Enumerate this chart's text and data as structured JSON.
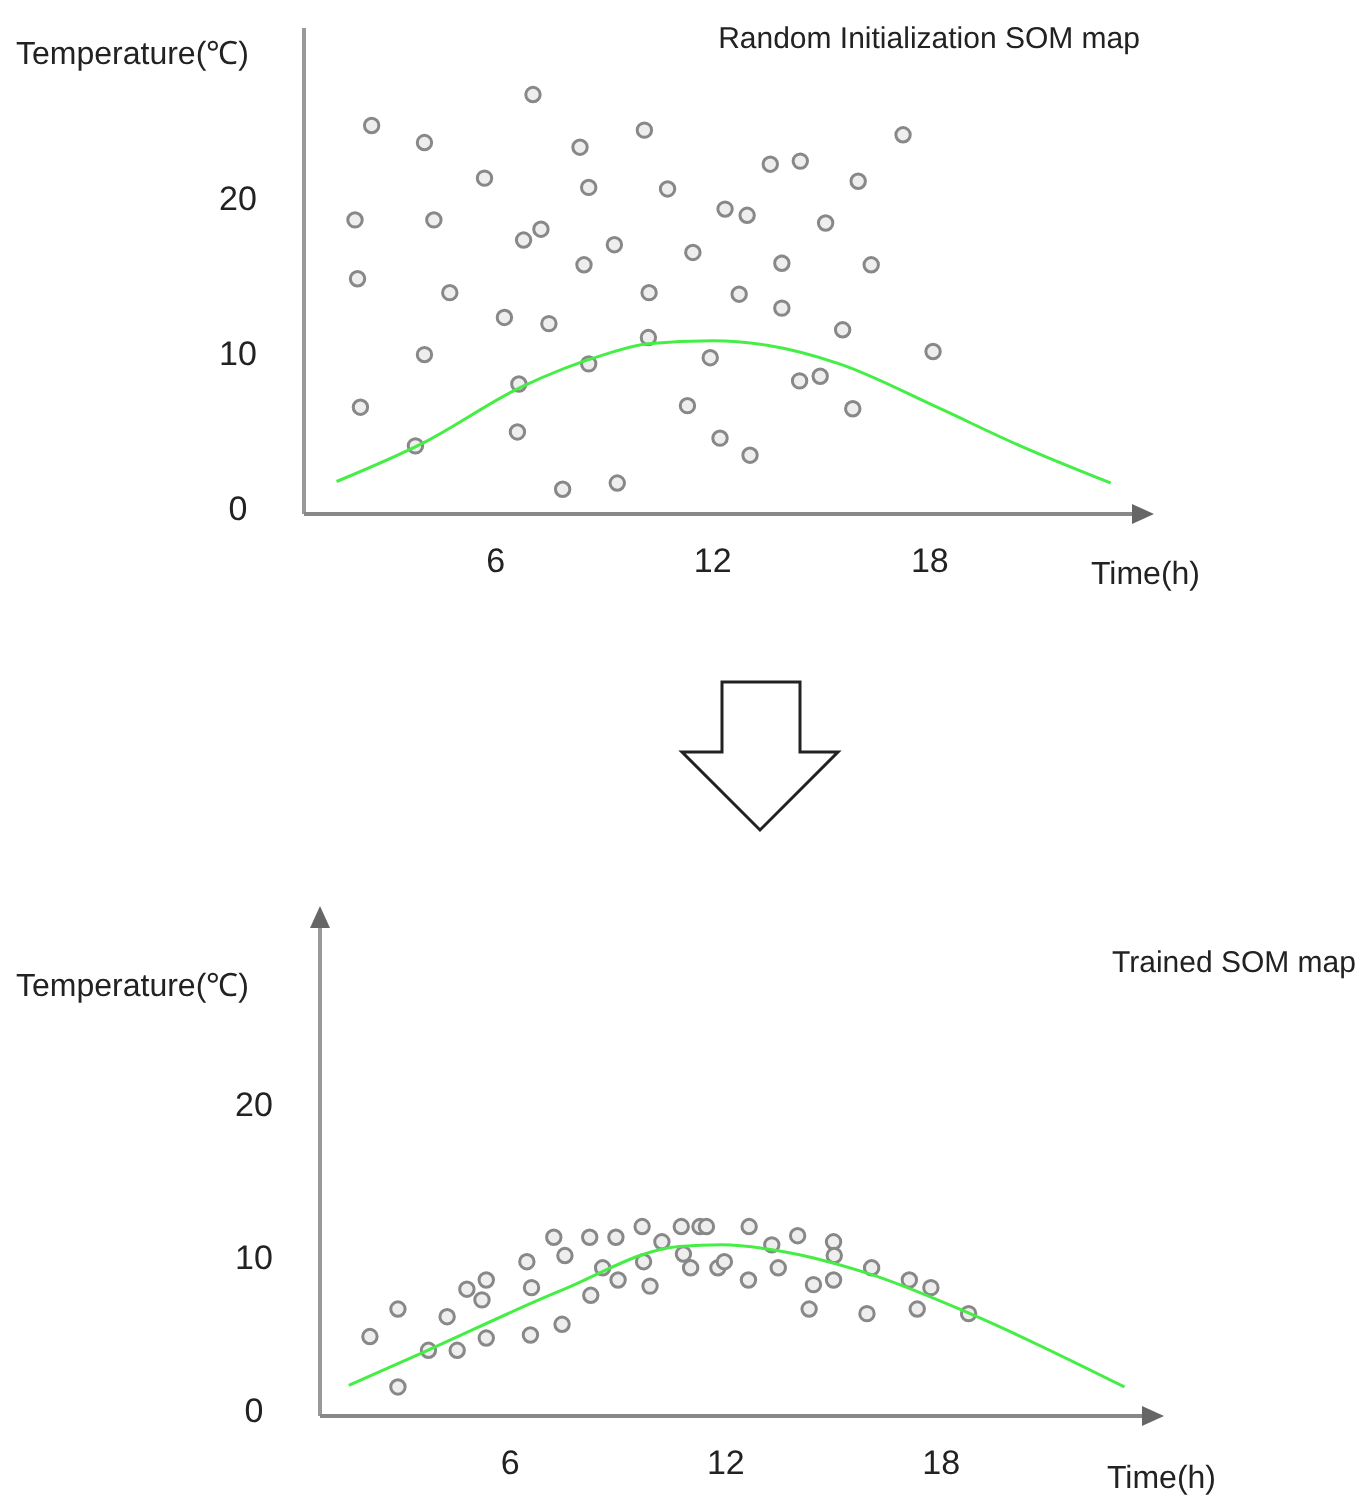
{
  "chart_data": [
    {
      "type": "scatter",
      "title": "Random Initialization SOM map",
      "xlabel": "Time(h)",
      "ylabel": "Temperature(℃)",
      "xlim": [
        0.7,
        23.7
      ],
      "ylim": [
        -0.4,
        31
      ],
      "xticks": [
        6,
        12,
        18
      ],
      "yticks": [
        0,
        10,
        20
      ],
      "series": [
        {
          "type": "scatter",
          "marker": "circle",
          "color": "#888888",
          "x": [
            2.57,
            4.03,
            7.03,
            8.33,
            10.11,
            5.69,
            8.57,
            10.75,
            2.11,
            4.29,
            6.77,
            7.25,
            9.28,
            2.18,
            8.44,
            4.73,
            10.24,
            6.24,
            7.47,
            4.03,
            10.22,
            8.57,
            6.64,
            2.26,
            6.6,
            3.78,
            7.85,
            9.36,
            17.26,
            13.59,
            14.42,
            16.02,
            12.34,
            12.95,
            15.12,
            11.45,
            13.91,
            16.38,
            12.73,
            13.91,
            15.59,
            11.93,
            18.09,
            14.4,
            14.97,
            11.3,
            15.87,
            12.2,
            13.03
          ],
          "values": [
            24.7,
            23.6,
            26.7,
            23.3,
            24.4,
            21.3,
            20.7,
            20.6,
            18.6,
            18.6,
            17.3,
            18.0,
            17.0,
            14.8,
            15.7,
            13.9,
            13.9,
            12.3,
            11.9,
            9.9,
            11.0,
            9.3,
            8.0,
            6.5,
            4.9,
            4.0,
            1.2,
            1.6,
            24.1,
            22.2,
            22.4,
            21.1,
            19.3,
            18.9,
            18.4,
            16.5,
            15.8,
            15.7,
            13.8,
            12.9,
            11.5,
            9.7,
            10.1,
            8.2,
            8.5,
            6.6,
            6.4,
            4.5,
            3.4
          ]
        },
        {
          "type": "line",
          "color": "#44ee44",
          "x": [
            1.6,
            4,
            6.7,
            9,
            10.2,
            12,
            13.5,
            15.5,
            18.2,
            20.5,
            23
          ],
          "values": [
            1.7,
            4.2,
            7.8,
            9.9,
            10.6,
            10.8,
            10.5,
            9.3,
            6.5,
            4.0,
            1.6
          ]
        }
      ]
    },
    {
      "type": "scatter",
      "title": "Trained SOM map",
      "xlabel": "Time(h)",
      "ylabel": "Temperature(℃)",
      "xlim": [
        0.7,
        23.7
      ],
      "ylim": [
        -0.4,
        31.8
      ],
      "xticks": [
        6,
        12,
        18
      ],
      "yticks": [
        0,
        10,
        20
      ],
      "series": [
        {
          "type": "scatter",
          "marker": "circle",
          "color": "#888888",
          "x": [
            2.09,
            2.87,
            2.87,
            3.72,
            4.24,
            4.52,
            4.79,
            5.33,
            5.21,
            5.33,
            6.46,
            6.59,
            6.56,
            7.21,
            7.52,
            7.44,
            8.21,
            8.94,
            8.57,
            8.24,
            9.0,
            9.67,
            9.71,
            9.89,
            10.22,
            10.76,
            11.28,
            11.46,
            10.82,
            11.02,
            11.78,
            11.96,
            12.65,
            13.28,
            12.63,
            13.46,
            14.0,
            15.0,
            15.02,
            14.44,
            15.0,
            14.32,
            16.06,
            15.93,
            17.11,
            17.71,
            17.33,
            18.76
          ],
          "values": [
            4.8,
            6.6,
            1.5,
            3.9,
            6.1,
            3.9,
            7.9,
            8.5,
            7.2,
            4.7,
            9.7,
            8.0,
            4.9,
            11.3,
            10.1,
            5.6,
            11.3,
            11.3,
            9.3,
            7.5,
            8.5,
            12.0,
            9.7,
            8.1,
            11.0,
            12.0,
            12.0,
            12.0,
            10.2,
            9.3,
            9.3,
            9.7,
            12.0,
            10.8,
            8.5,
            9.3,
            11.4,
            11.0,
            10.1,
            8.2,
            8.5,
            6.6,
            9.3,
            6.3,
            8.5,
            8.0,
            6.6,
            6.3
          ]
        },
        {
          "type": "line",
          "color": "#44ee44",
          "x": [
            1.5,
            3.7,
            7.4,
            10.7,
            11.9,
            13.5,
            16,
            18.8,
            23.1
          ],
          "values": [
            1.6,
            3.9,
            7.8,
            10.7,
            10.8,
            10.4,
            8.9,
            6.3,
            1.5
          ]
        }
      ]
    }
  ]
}
